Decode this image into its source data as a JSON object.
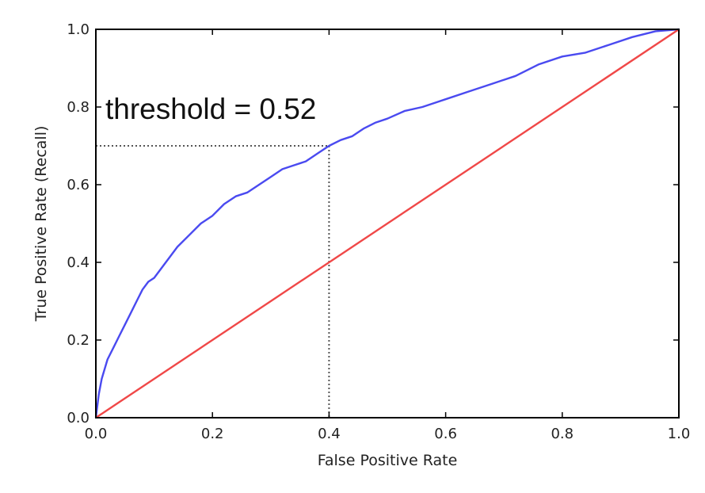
{
  "chart_data": {
    "type": "line",
    "xlabel": "False Positive Rate",
    "ylabel": "True Positive Rate (Recall)",
    "xlim": [
      0.0,
      1.0
    ],
    "ylim": [
      0.0,
      1.0
    ],
    "xticks": [
      "0.0",
      "0.2",
      "0.4",
      "0.6",
      "0.8",
      "1.0"
    ],
    "yticks": [
      "0.0",
      "0.2",
      "0.4",
      "0.6",
      "0.8",
      "1.0"
    ],
    "grid": false,
    "annotation": "threshold = 0.52",
    "marker_point": {
      "x": 0.4,
      "y": 0.7
    },
    "series": [
      {
        "color": "#4a4af0",
        "x": [
          0.0,
          0.005,
          0.01,
          0.02,
          0.03,
          0.04,
          0.05,
          0.06,
          0.07,
          0.08,
          0.09,
          0.1,
          0.12,
          0.14,
          0.16,
          0.18,
          0.2,
          0.22,
          0.24,
          0.26,
          0.28,
          0.3,
          0.32,
          0.34,
          0.36,
          0.38,
          0.4,
          0.42,
          0.44,
          0.46,
          0.48,
          0.5,
          0.53,
          0.56,
          0.6,
          0.64,
          0.68,
          0.72,
          0.76,
          0.8,
          0.84,
          0.88,
          0.92,
          0.96,
          1.0
        ],
        "y": [
          0.0,
          0.06,
          0.1,
          0.15,
          0.18,
          0.21,
          0.24,
          0.27,
          0.3,
          0.33,
          0.35,
          0.36,
          0.4,
          0.44,
          0.47,
          0.5,
          0.52,
          0.55,
          0.57,
          0.58,
          0.6,
          0.62,
          0.64,
          0.65,
          0.66,
          0.68,
          0.7,
          0.715,
          0.725,
          0.745,
          0.76,
          0.77,
          0.79,
          0.8,
          0.82,
          0.84,
          0.86,
          0.88,
          0.91,
          0.93,
          0.94,
          0.96,
          0.98,
          0.995,
          1.0
        ]
      },
      {
        "color": "#f04848",
        "x": [
          0.0,
          1.0
        ],
        "y": [
          0.0,
          1.0
        ]
      }
    ]
  }
}
